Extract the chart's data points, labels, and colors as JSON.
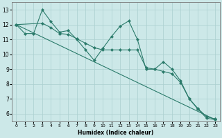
{
  "xlabel": "Humidex (Indice chaleur)",
  "background_color": "#cce8e8",
  "grid_color": "#aacfcf",
  "line_color": "#2a7a6a",
  "xlim": [
    -0.5,
    23.5
  ],
  "ylim": [
    5.5,
    13.5
  ],
  "xticks": [
    0,
    1,
    2,
    3,
    4,
    5,
    6,
    7,
    8,
    9,
    10,
    11,
    12,
    13,
    14,
    15,
    16,
    17,
    18,
    19,
    20,
    21,
    22,
    23
  ],
  "yticks": [
    6,
    7,
    8,
    9,
    10,
    11,
    12,
    13
  ],
  "line1_x": [
    0,
    1,
    2,
    3,
    4,
    5,
    6,
    7,
    8,
    9,
    10,
    11,
    12,
    13,
    14,
    15,
    16,
    17,
    18,
    19,
    20,
    21,
    22,
    23
  ],
  "line1_y": [
    12.0,
    11.4,
    11.4,
    13.0,
    12.2,
    11.5,
    11.6,
    11.0,
    10.3,
    9.6,
    10.4,
    11.2,
    11.9,
    12.25,
    11.0,
    9.0,
    9.0,
    9.5,
    9.0,
    8.2,
    7.0,
    6.3,
    5.7,
    5.6
  ],
  "line2_x": [
    0,
    3,
    4,
    5,
    6,
    7,
    8,
    9,
    10,
    11,
    12,
    13,
    14,
    15,
    16,
    17,
    18,
    19,
    20,
    21,
    22,
    23
  ],
  "line2_y": [
    12.0,
    12.1,
    11.8,
    11.4,
    11.35,
    11.05,
    10.75,
    10.45,
    10.3,
    10.3,
    10.3,
    10.3,
    10.3,
    9.1,
    9.0,
    8.85,
    8.7,
    8.1,
    7.0,
    6.35,
    5.8,
    5.65
  ],
  "line3_x": [
    0,
    23
  ],
  "line3_y": [
    12.0,
    5.6
  ]
}
